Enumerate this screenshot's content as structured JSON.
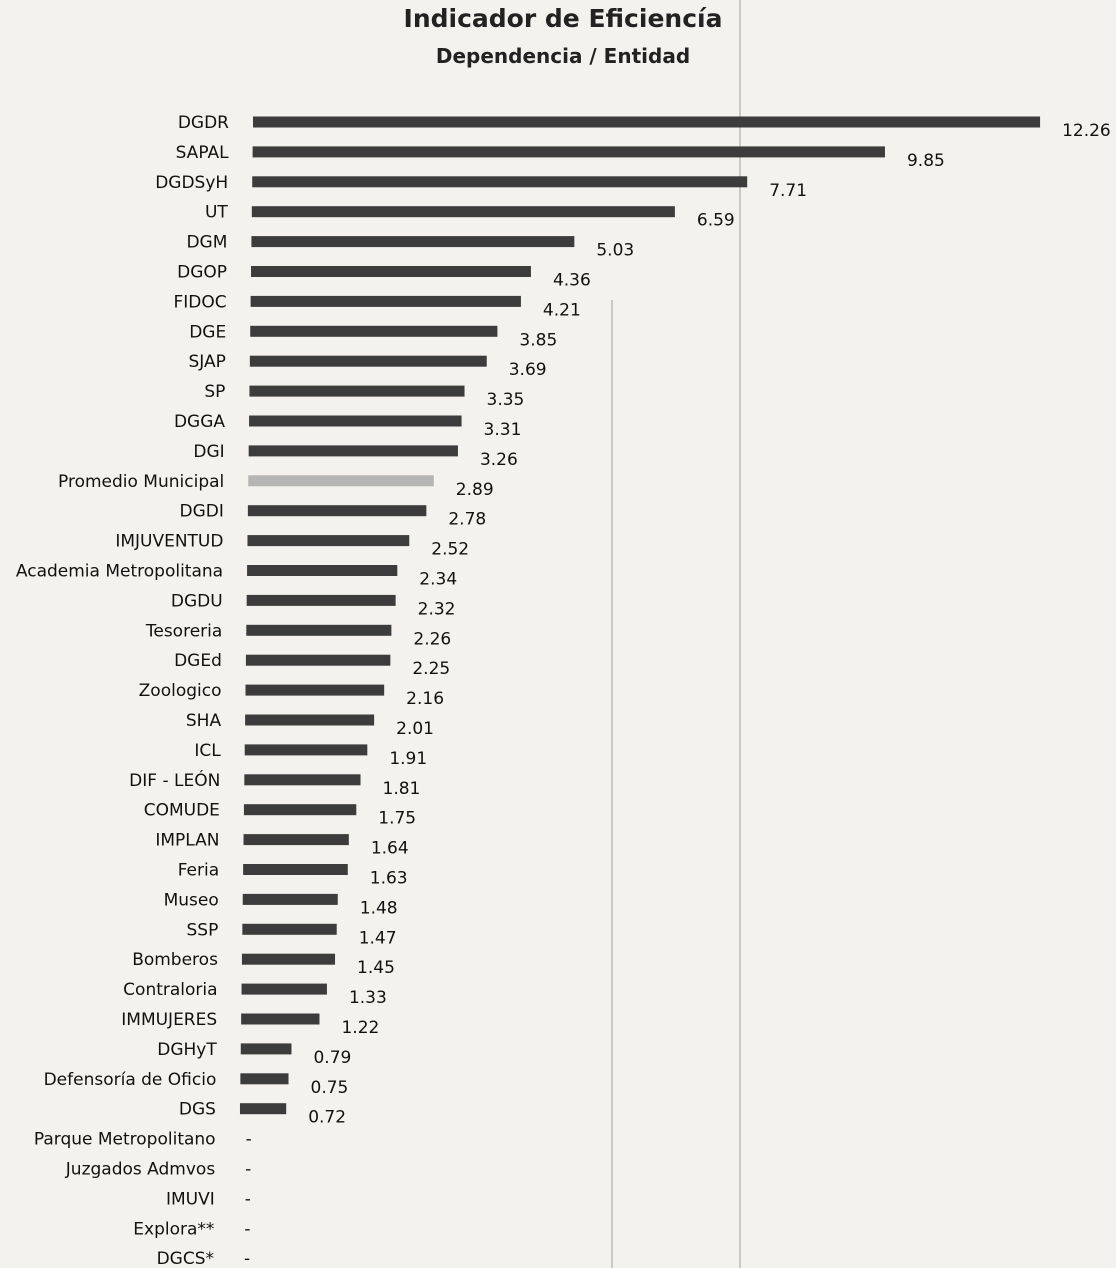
{
  "chart_data": {
    "type": "bar",
    "orientation": "horizontal",
    "title": "Indicador de Eficiencía",
    "subtitle": "Dependencia / Entidad",
    "categories": [
      "DGDR",
      "SAPAL",
      "DGDSyH",
      "UT",
      "DGM",
      "DGOP",
      "FIDOC",
      "DGE",
      "SJAP",
      "SP",
      "DGGA",
      "DGI",
      "Promedio Municipal",
      "DGDI",
      "IMJUVENTUD",
      "Academia Metropolitana",
      "DGDU",
      "Tesoreria",
      "DGEd",
      "Zoologico",
      "SHA",
      "ICL",
      "DIF - LEÓN",
      "COMUDE",
      "IMPLAN",
      "Feria",
      "Museo",
      "SSP",
      "Bomberos",
      "Contraloria",
      "IMMUJERES",
      "DGHyT",
      "Defensoría de Oficio",
      "DGS",
      "Parque Metropolitano",
      "Juzgados Admvos",
      "IMUVI",
      "Explora**",
      "DGCS*"
    ],
    "values": [
      12.26,
      9.85,
      7.71,
      6.59,
      5.03,
      4.36,
      4.21,
      3.85,
      3.69,
      3.35,
      3.31,
      3.26,
      2.89,
      2.78,
      2.52,
      2.34,
      2.32,
      2.26,
      2.25,
      2.16,
      2.01,
      1.91,
      1.81,
      1.75,
      1.64,
      1.63,
      1.48,
      1.47,
      1.45,
      1.33,
      1.22,
      0.79,
      0.75,
      0.72,
      null,
      null,
      null,
      null,
      null
    ],
    "value_labels": [
      "12.26",
      "9.85",
      "7.71",
      "6.59",
      "5.03",
      "4.36",
      "4.21",
      "3.85",
      "3.69",
      "3.35",
      "3.31",
      "3.26",
      "2.89",
      "2.78",
      "2.52",
      "2.34",
      "2.32",
      "2.26",
      "2.25",
      "2.16",
      "2.01",
      "1.91",
      "1.81",
      "1.75",
      "1.64",
      "1.63",
      "1.48",
      "1.47",
      "1.45",
      "1.33",
      "1.22",
      "0.79",
      "0.75",
      "0.72",
      "-",
      "-",
      "-",
      "-",
      "-"
    ],
    "highlight_category": "Promedio Municipal",
    "colors": {
      "bar": "#3c3c3c",
      "highlight_bar": "#b5b5b5",
      "background": "#f3f2ee"
    },
    "grid": false,
    "legend": "none"
  }
}
